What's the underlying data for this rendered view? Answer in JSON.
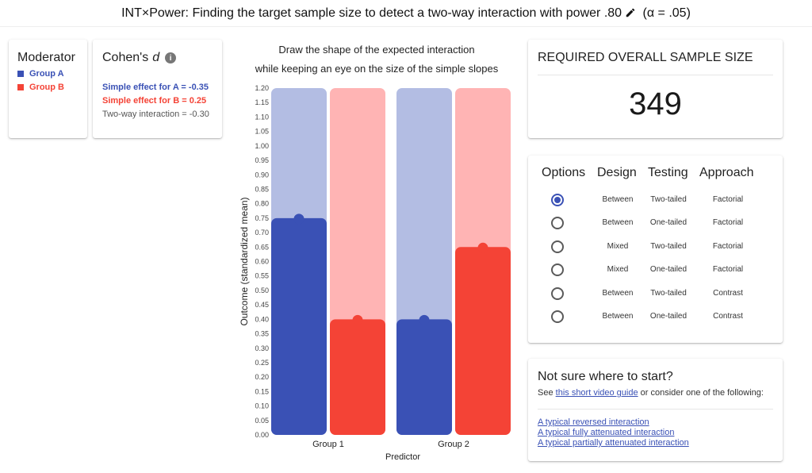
{
  "header": {
    "title_main": "INT×Power: Finding the target sample size to detect a two-way interaction with power",
    "power_value": ".80",
    "alpha_text": "(α = .05)"
  },
  "moderator": {
    "title": "Moderator",
    "groups": [
      {
        "label": "Group A",
        "color": "#3a51b5"
      },
      {
        "label": "Group B",
        "color": "#f44336"
      }
    ]
  },
  "cohen": {
    "title": "Cohen's",
    "d": "d",
    "info_icon": "i",
    "simple_a": "Simple effect for A = -0.35",
    "simple_b": "Simple effect for B = 0.25",
    "interaction": "Two-way interaction = -0.30"
  },
  "chart_caption": {
    "line1": "Draw the shape of the expected interaction",
    "line2": "while keeping an eye on the size of the simple slopes"
  },
  "chart_data": {
    "type": "bar",
    "categories": [
      "Group 1",
      "Group 2"
    ],
    "series": [
      {
        "name": "Group A",
        "values": [
          0.75,
          0.4
        ],
        "color": "#3a51b5",
        "track_color": "#b3bde3"
      },
      {
        "name": "Group B",
        "values": [
          0.4,
          0.65
        ],
        "color": "#f44336",
        "track_color": "#ffb4b4"
      }
    ],
    "xlabel": "Predictor",
    "ylabel": "Outcome (standardized mean)",
    "ylim": [
      0,
      1.2
    ],
    "ytick_step": 0.05
  },
  "sample": {
    "title": "REQUIRED OVERALL SAMPLE SIZE",
    "value": "349"
  },
  "options": {
    "headers": [
      "Options",
      "Design",
      "Testing",
      "Approach"
    ],
    "rows": [
      {
        "selected": true,
        "design": "Between",
        "testing": "Two-tailed",
        "approach": "Factorial"
      },
      {
        "selected": false,
        "design": "Between",
        "testing": "One-tailed",
        "approach": "Factorial"
      },
      {
        "selected": false,
        "design": "Mixed",
        "testing": "Two-tailed",
        "approach": "Factorial"
      },
      {
        "selected": false,
        "design": "Mixed",
        "testing": "One-tailed",
        "approach": "Factorial"
      },
      {
        "selected": false,
        "design": "Between",
        "testing": "Two-tailed",
        "approach": "Contrast"
      },
      {
        "selected": false,
        "design": "Between",
        "testing": "One-tailed",
        "approach": "Contrast"
      }
    ]
  },
  "help": {
    "title": "Not sure where to start?",
    "sub_prefix": "See",
    "video_link": "this short video guide",
    "sub_suffix": "or consider one of the following:",
    "links": [
      "A typical reversed interaction",
      "A typical fully attenuated interaction",
      "A typical partially attenuated interaction"
    ]
  },
  "icons": {
    "edit": "pencil-icon",
    "info": "info-icon"
  }
}
